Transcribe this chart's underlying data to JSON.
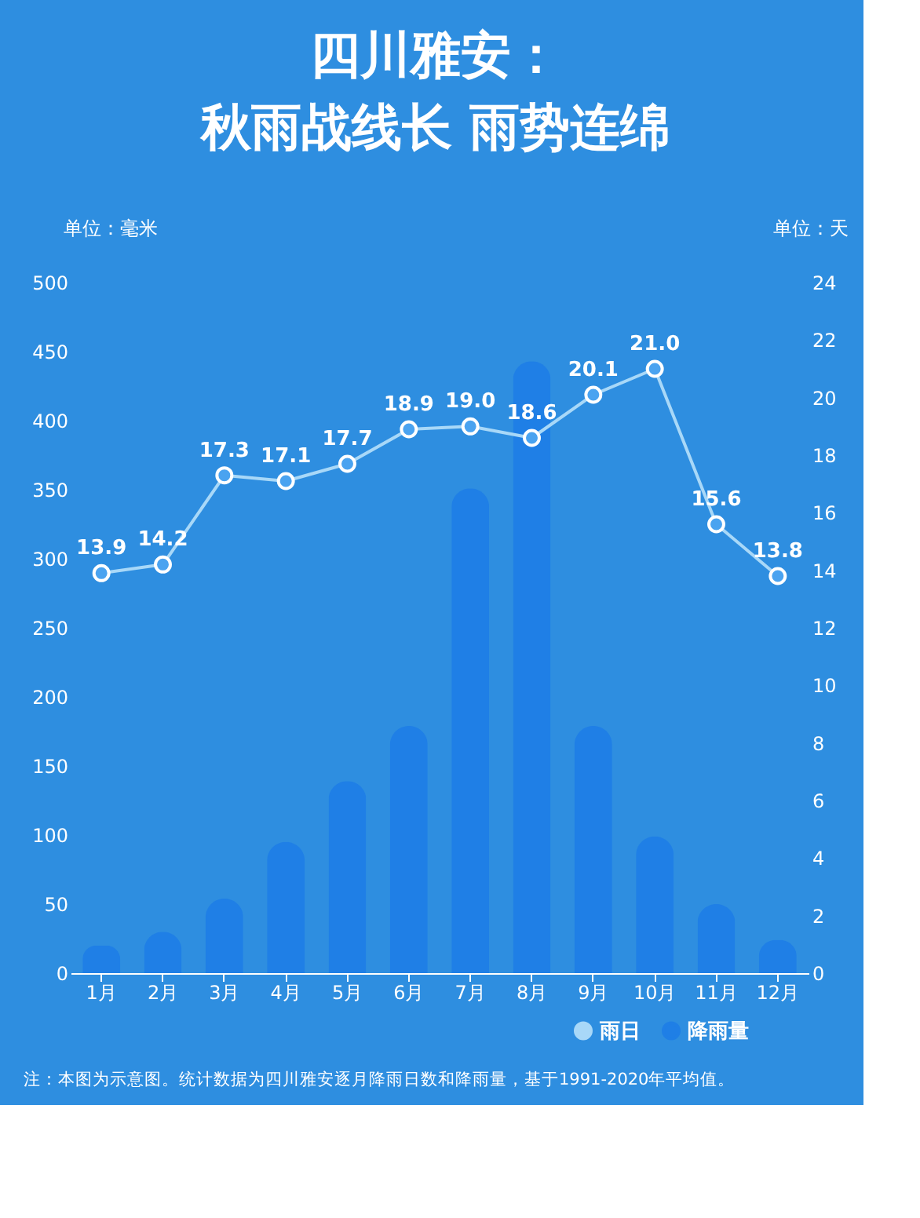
{
  "chart_data": {
    "type": "bar",
    "title": "四川雅安：",
    "subtitle": "秋雨战线长  雨势连绵",
    "ylabel": "单位：毫米",
    "y2label": "单位：天",
    "categories": [
      "1月",
      "2月",
      "3月",
      "4月",
      "5月",
      "6月",
      "7月",
      "8月",
      "9月",
      "10月",
      "11月",
      "12月"
    ],
    "series": [
      {
        "name": "雨日",
        "type": "line",
        "axis": "y2",
        "color": "#a8d8f8",
        "marker": "circle",
        "values": [
          13.9,
          14.2,
          17.3,
          17.1,
          17.7,
          18.9,
          19.0,
          18.6,
          20.1,
          21.0,
          15.6,
          13.8
        ],
        "value_labels": [
          "13.9",
          "14.2",
          "17.3",
          "17.1",
          "17.7",
          "18.9",
          "19.0",
          "18.6",
          "20.1",
          "21.0",
          "15.6",
          "13.8"
        ]
      },
      {
        "name": "降雨量",
        "color": "#1f7fe6",
        "values": [
          20,
          30,
          54,
          95,
          139,
          179,
          351,
          443,
          179,
          99,
          50,
          24
        ]
      }
    ],
    "ylim": [
      0,
      500
    ],
    "yticks": [
      0,
      50,
      100,
      150,
      200,
      250,
      300,
      350,
      400,
      450,
      500
    ],
    "y2lim": [
      0,
      24
    ],
    "y2ticks": [
      0,
      2,
      4,
      6,
      8,
      10,
      12,
      14,
      16,
      18,
      20,
      22,
      24
    ],
    "grid": false,
    "legend": "bottom right",
    "annotations": [
      "注：本图为示意图。统计数据为四川雅安逐月降雨日数和降雨量，基于1991-2020年平均值。"
    ]
  }
}
